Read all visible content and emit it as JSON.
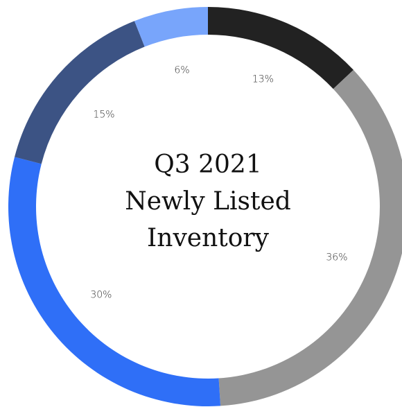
{
  "chart_data": {
    "type": "donut",
    "title": [
      "Q3 2021",
      "Newly Listed",
      "Inventory"
    ],
    "values": [
      13,
      36,
      30,
      15,
      6
    ],
    "value_labels": [
      "13%",
      "36%",
      "30%",
      "15%",
      "6%"
    ],
    "colors": [
      "#222222",
      "#959595",
      "#2f6ff7",
      "#3c5384",
      "#78a5fb"
    ]
  }
}
